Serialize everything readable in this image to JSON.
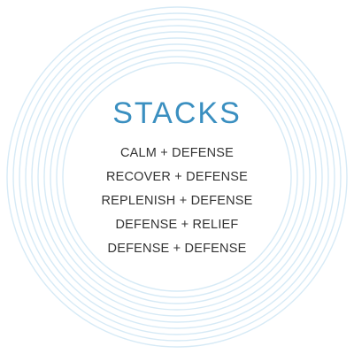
{
  "colors": {
    "title": "#3a8fc0",
    "items": "#333333",
    "rings": "#d6eaf6"
  },
  "title": "STACKS",
  "items": [
    "CALM + DEFENSE",
    "RECOVER + DEFENSE",
    "REPLENISH + DEFENSE",
    "DEFENSE + RELIEF",
    "DEFENSE + DEFENSE"
  ]
}
